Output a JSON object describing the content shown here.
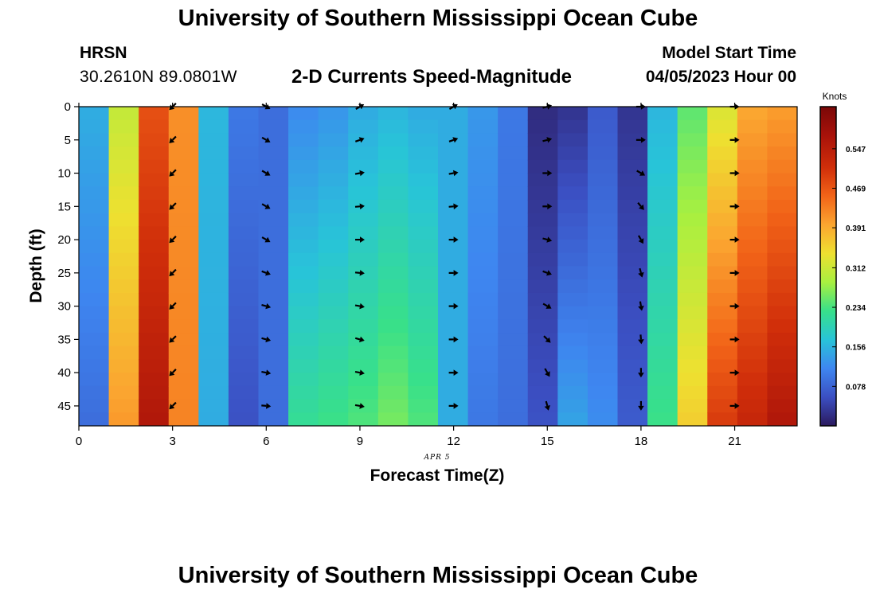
{
  "page": {
    "title_top": "University of Southern Mississippi Ocean Cube",
    "title_bottom": "University of Southern Mississippi Ocean Cube",
    "station": "HRSN",
    "coords": "30.2610N  89.0801W",
    "subtitle": "2-D Currents Speed-Magnitude",
    "start_label": "Model Start Time",
    "start_value": "04/05/2023 Hour 00"
  },
  "chart_data": {
    "type": "heatmap",
    "xlabel": "Forecast Time(Z)",
    "ylabel": "Depth (ft)",
    "date_label": "APR 5",
    "x_ticks": [
      0,
      3,
      6,
      9,
      12,
      15,
      18,
      21
    ],
    "y_ticks": [
      0,
      5,
      10,
      15,
      20,
      25,
      30,
      35,
      40,
      45
    ],
    "xlim": [
      0,
      23
    ],
    "ylim": [
      0,
      48
    ],
    "colorbar": {
      "label": "Knots",
      "ticks": [
        0.078,
        0.156,
        0.234,
        0.312,
        0.391,
        0.469,
        0.547
      ],
      "range": [
        0.0,
        0.63
      ],
      "colors": [
        "#2b1a5e",
        "#3b4fc2",
        "#3e86f0",
        "#28c4d8",
        "#38e08a",
        "#a8f040",
        "#eee030",
        "#fba530",
        "#f26418",
        "#d02e0a",
        "#a8120a",
        "#7a0808"
      ]
    },
    "hours": [
      0,
      1,
      2,
      3,
      4,
      5,
      6,
      7,
      8,
      9,
      10,
      11,
      12,
      13,
      14,
      15,
      16,
      17,
      18,
      19,
      20,
      21,
      22,
      23
    ],
    "speed_top": [
      0.15,
      0.31,
      0.48,
      0.42,
      0.16,
      0.1,
      0.09,
      0.12,
      0.13,
      0.15,
      0.16,
      0.15,
      0.15,
      0.13,
      0.1,
      0.02,
      0.03,
      0.07,
      0.03,
      0.16,
      0.25,
      0.33,
      0.4,
      0.41
    ],
    "speed_bottom": [
      0.09,
      0.41,
      0.56,
      0.43,
      0.15,
      0.06,
      0.09,
      0.22,
      0.23,
      0.24,
      0.26,
      0.24,
      0.15,
      0.1,
      0.09,
      0.06,
      0.14,
      0.12,
      0.07,
      0.23,
      0.36,
      0.5,
      0.53,
      0.56
    ],
    "arrow_hours": [
      3,
      6,
      9,
      12,
      15,
      18,
      21
    ],
    "arrow_depths": [
      0,
      5,
      10,
      15,
      20,
      25,
      30,
      35,
      40,
      45
    ],
    "arrow_directions_deg": [
      [
        225,
        225,
        225,
        225,
        225,
        225,
        225,
        225,
        225,
        225
      ],
      [
        -30,
        -30,
        -30,
        -30,
        -30,
        -20,
        -15,
        -15,
        -10,
        -5
      ],
      [
        30,
        20,
        10,
        5,
        0,
        -5,
        -10,
        -15,
        -10,
        -10
      ],
      [
        30,
        20,
        10,
        5,
        0,
        0,
        0,
        0,
        0,
        0
      ],
      [
        15,
        15,
        0,
        0,
        -15,
        -20,
        -30,
        -45,
        -60,
        -75
      ],
      [
        0,
        0,
        -30,
        -50,
        -60,
        -75,
        -80,
        -85,
        -90,
        -90
      ],
      [
        0,
        0,
        0,
        0,
        0,
        0,
        0,
        0,
        0,
        0
      ]
    ]
  }
}
